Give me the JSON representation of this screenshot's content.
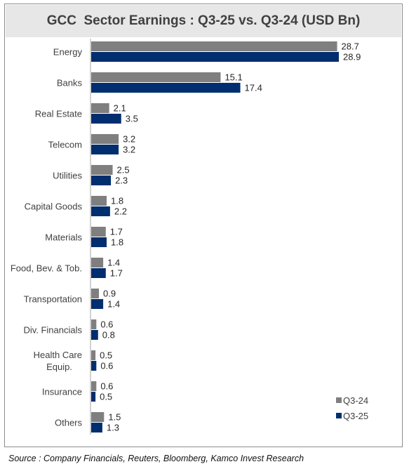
{
  "chart_data": {
    "type": "bar",
    "orientation": "horizontal",
    "title": "GCC  Sector Earnings : Q3-25 vs. Q3-24 (USD Bn)",
    "categories": [
      "Energy",
      "Banks",
      "Real Estate",
      "Telecom",
      "Utilities",
      "Capital Goods",
      "Materials",
      "Food, Bev. & Tob.",
      "Transportation",
      "Div. Financials",
      "Health Care Equip.",
      "Insurance",
      "Others"
    ],
    "series": [
      {
        "name": "Q3-24",
        "color": "#7f7f7f",
        "values": [
          28.7,
          15.1,
          2.1,
          3.2,
          2.5,
          1.8,
          1.7,
          1.4,
          0.9,
          0.6,
          0.5,
          0.6,
          1.5
        ],
        "labels": [
          "28.7",
          "15.1",
          "2.1",
          "3.2",
          "2.5",
          "1.8",
          "1.7",
          "1.4",
          "0.9",
          "0.6",
          "0.5",
          "0.6",
          "1.5"
        ]
      },
      {
        "name": "Q3-25",
        "color": "#002e6e",
        "values": [
          28.9,
          17.4,
          3.5,
          3.2,
          2.3,
          2.2,
          1.8,
          1.7,
          1.4,
          0.8,
          0.6,
          0.5,
          1.3
        ],
        "labels": [
          "28.9",
          "17.4",
          "3.5",
          "3.2",
          "2.3",
          "2.2",
          "1.8",
          "1.7",
          "1.4",
          "0.8",
          "0.6",
          "0.5",
          "1.3"
        ]
      }
    ],
    "legend_position": "bottom-right",
    "grid": false,
    "xlim": [
      0,
      28.9
    ]
  },
  "source": "Source : Company Financials, Reuters, Bloomberg, Kamco Invest Research"
}
